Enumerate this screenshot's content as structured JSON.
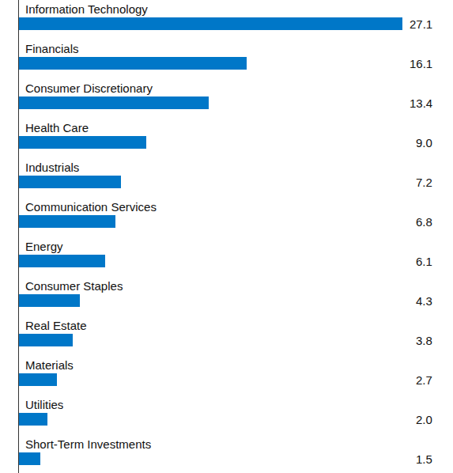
{
  "chart_data": {
    "type": "bar",
    "orientation": "horizontal",
    "categories": [
      "Information Technology",
      "Financials",
      "Consumer Discretionary",
      "Health Care",
      "Industrials",
      "Communication Services",
      "Energy",
      "Consumer Staples",
      "Real Estate",
      "Materials",
      "Utilities",
      "Short-Term Investments"
    ],
    "values": [
      27.1,
      16.1,
      13.4,
      9.0,
      7.2,
      6.8,
      6.1,
      4.3,
      3.8,
      2.7,
      2.0,
      1.5
    ],
    "value_labels": [
      "27.1",
      "16.1",
      "13.4",
      "9.0",
      "7.2",
      "6.8",
      "6.1",
      "4.3",
      "3.8",
      "2.7",
      "2.0",
      "1.5"
    ],
    "color": "#0077c8",
    "xlim": [
      0,
      27.1
    ],
    "data_labels": true,
    "grid": false
  }
}
